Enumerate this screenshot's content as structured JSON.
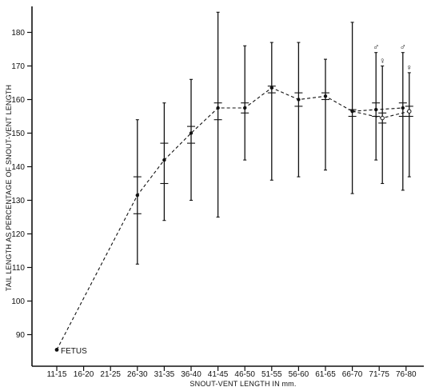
{
  "chart_data": {
    "type": "line",
    "xlabel": "SNOUT-VENT LENGTH IN mm.",
    "ylabel": "TAIL LENGTH AS PERCENTAGE OF SNOUT-VENT LENGTH",
    "categories": [
      "11-15",
      "16-20",
      "21-25",
      "26-30",
      "31-35",
      "36-40",
      "41-45",
      "46-50",
      "51-55",
      "56-60",
      "61-65",
      "66-70",
      "71-75",
      "76-80"
    ],
    "ylim": [
      80,
      190
    ],
    "yticks": [
      90,
      100,
      110,
      120,
      130,
      140,
      150,
      160,
      170,
      180
    ],
    "annotations": [
      "FETUS"
    ],
    "sex_symbols": {
      "male": "♂",
      "female": "♀"
    },
    "series": [
      {
        "role": "mean-trend",
        "points": [
          {
            "category": "11-15",
            "mean": 85.5
          },
          {
            "category": "26-30",
            "mean": 131.5,
            "min": 111,
            "max": 154,
            "inner": [
              126,
              137
            ]
          },
          {
            "category": "31-35",
            "mean": 142,
            "min": 124,
            "max": 159,
            "inner": [
              135,
              147
            ]
          },
          {
            "category": "36-40",
            "mean": 150,
            "min": 130,
            "max": 166,
            "inner": [
              147,
              152
            ]
          },
          {
            "category": "41-45",
            "mean": 157.5,
            "min": 125,
            "max": 186,
            "inner": [
              154,
              159
            ]
          },
          {
            "category": "46-50",
            "mean": 157.5,
            "min": 142,
            "max": 176,
            "inner": [
              156,
              159
            ]
          },
          {
            "category": "51-55",
            "mean": 163.5,
            "min": 136,
            "max": 177,
            "inner": [
              162,
              164
            ]
          },
          {
            "category": "56-60",
            "mean": 160,
            "min": 137,
            "max": 177,
            "inner": [
              158,
              162
            ]
          },
          {
            "category": "61-65",
            "mean": 161,
            "min": 139,
            "max": 172,
            "inner": [
              160,
              162
            ]
          },
          {
            "category": "66-70",
            "mean": 156.5,
            "min": 132,
            "max": 183,
            "inner": [
              155,
              157
            ]
          }
        ]
      },
      {
        "role": "male",
        "symbol": "♂",
        "points": [
          {
            "category": "66-70",
            "mean": 156.5
          },
          {
            "category": "71-75",
            "mean": 157,
            "min": 142,
            "max": 174,
            "inner": [
              155,
              159
            ]
          },
          {
            "category": "76-80",
            "mean": 157.5,
            "min": 133,
            "max": 174,
            "inner": [
              155,
              159
            ]
          }
        ]
      },
      {
        "role": "female",
        "symbol": "♀",
        "points": [
          {
            "category": "66-70",
            "mean": 156.5
          },
          {
            "category": "71-75",
            "mean": 154.5,
            "min": 135,
            "max": 170,
            "inner": [
              153,
              156
            ]
          },
          {
            "category": "76-80",
            "mean": 156.5,
            "min": 137,
            "max": 168,
            "inner": [
              155,
              158
            ]
          }
        ]
      }
    ]
  }
}
